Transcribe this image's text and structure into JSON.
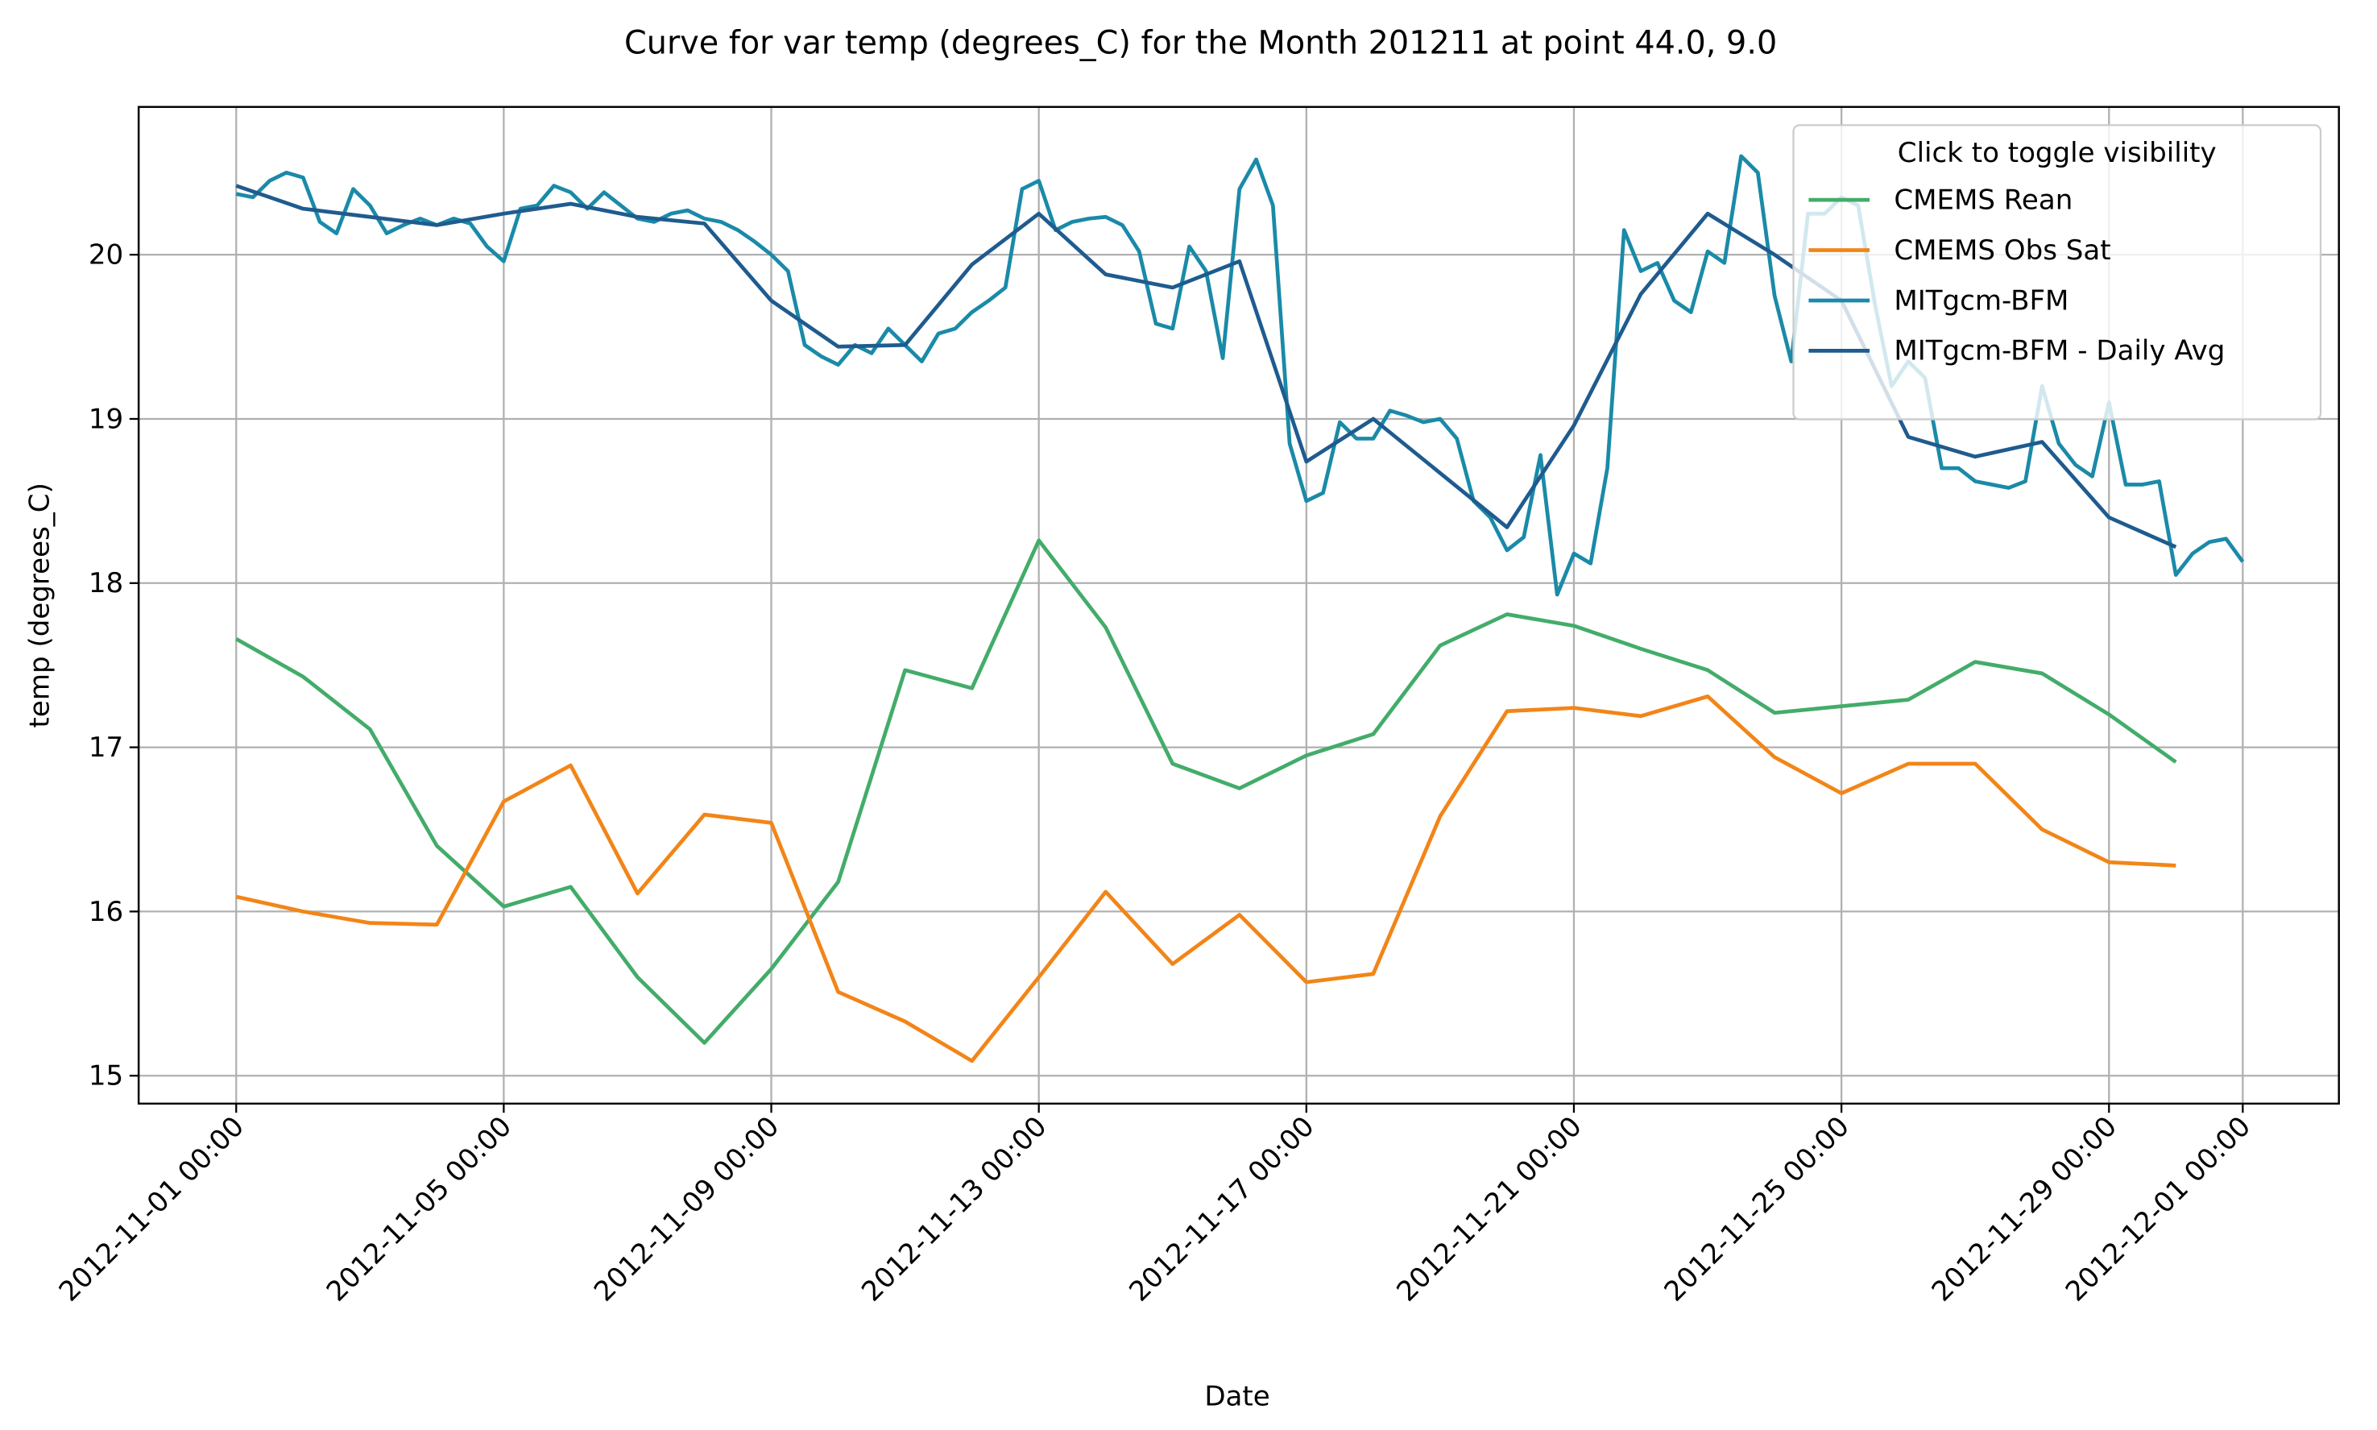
{
  "chart_data": {
    "type": "line",
    "title": "Curve for var temp (degrees_C) for the Month 201211 at point 44.0, 9.0",
    "x_label": "Date",
    "y_label": "temp (degrees_C)",
    "grid": true,
    "legend_title": "Click to toggle visibility",
    "legend_position": "upper right",
    "xlim": [
      "2012-10-30 13:00",
      "2012-12-02 10:30"
    ],
    "ylim": [
      14.83,
      20.9
    ],
    "xticks": [
      "2012-11-01 00:00",
      "2012-11-05 00:00",
      "2012-11-09 00:00",
      "2012-11-13 00:00",
      "2012-11-17 00:00",
      "2012-11-21 00:00",
      "2012-11-25 00:00",
      "2012-11-29 00:00",
      "2012-12-01 00:00"
    ],
    "yticks": [
      15,
      16,
      17,
      18,
      19,
      20
    ],
    "x": [
      "2012-11-01 00:00",
      "2012-11-02 00:00",
      "2012-11-03 00:00",
      "2012-11-04 00:00",
      "2012-11-05 00:00",
      "2012-11-06 00:00",
      "2012-11-07 00:00",
      "2012-11-08 00:00",
      "2012-11-09 00:00",
      "2012-11-10 00:00",
      "2012-11-11 00:00",
      "2012-11-12 00:00",
      "2012-11-13 00:00",
      "2012-11-14 00:00",
      "2012-11-15 00:00",
      "2012-11-16 00:00",
      "2012-11-17 00:00",
      "2012-11-18 00:00",
      "2012-11-19 00:00",
      "2012-11-20 00:00",
      "2012-11-21 00:00",
      "2012-11-22 00:00",
      "2012-11-23 00:00",
      "2012-11-24 00:00",
      "2012-11-25 00:00",
      "2012-11-26 00:00",
      "2012-11-27 00:00",
      "2012-11-28 00:00",
      "2012-11-29 00:00",
      "2012-11-30 00:00"
    ],
    "series": [
      {
        "name": "CMEMS Rean",
        "color": "#43ac6a",
        "values": [
          17.66,
          17.43,
          17.11,
          16.4,
          16.03,
          16.15,
          15.6,
          15.2,
          15.65,
          16.18,
          17.47,
          17.36,
          18.26,
          17.73,
          16.9,
          16.75,
          16.95,
          17.08,
          17.62,
          17.81,
          17.74,
          17.6,
          17.47,
          17.21,
          17.25,
          17.29,
          17.52,
          17.45,
          17.2,
          16.91
        ]
      },
      {
        "name": "CMEMS Obs Sat",
        "color": "#f28518",
        "values": [
          16.09,
          16.0,
          15.93,
          15.92,
          16.67,
          16.89,
          16.11,
          16.59,
          16.54,
          15.51,
          15.33,
          15.09,
          15.6,
          16.12,
          15.68,
          15.98,
          15.57,
          15.62,
          16.58,
          17.22,
          17.24,
          17.19,
          17.31,
          16.94,
          16.72,
          16.9,
          16.9,
          16.5,
          16.3,
          16.28
        ]
      },
      {
        "name": "MITgcm-BFM",
        "color": "#1a8aa8",
        "x": [
          "2012-11-01 00:00",
          "2012-11-01 06:00",
          "2012-11-01 12:00",
          "2012-11-01 18:00",
          "2012-11-02 00:00",
          "2012-11-02 06:00",
          "2012-11-02 12:00",
          "2012-11-02 18:00",
          "2012-11-03 00:00",
          "2012-11-03 06:00",
          "2012-11-03 12:00",
          "2012-11-03 18:00",
          "2012-11-04 00:00",
          "2012-11-04 06:00",
          "2012-11-04 12:00",
          "2012-11-04 18:00",
          "2012-11-05 00:00",
          "2012-11-05 06:00",
          "2012-11-05 12:00",
          "2012-11-05 18:00",
          "2012-11-06 00:00",
          "2012-11-06 06:00",
          "2012-11-06 12:00",
          "2012-11-06 18:00",
          "2012-11-07 00:00",
          "2012-11-07 06:00",
          "2012-11-07 12:00",
          "2012-11-07 18:00",
          "2012-11-08 00:00",
          "2012-11-08 06:00",
          "2012-11-08 12:00",
          "2012-11-08 18:00",
          "2012-11-09 00:00",
          "2012-11-09 06:00",
          "2012-11-09 12:00",
          "2012-11-09 18:00",
          "2012-11-10 00:00",
          "2012-11-10 06:00",
          "2012-11-10 12:00",
          "2012-11-10 18:00",
          "2012-11-11 00:00",
          "2012-11-11 06:00",
          "2012-11-11 12:00",
          "2012-11-11 18:00",
          "2012-11-12 00:00",
          "2012-11-12 06:00",
          "2012-11-12 12:00",
          "2012-11-12 18:00",
          "2012-11-13 00:00",
          "2012-11-13 06:00",
          "2012-11-13 12:00",
          "2012-11-13 18:00",
          "2012-11-14 00:00",
          "2012-11-14 06:00",
          "2012-11-14 12:00",
          "2012-11-14 18:00",
          "2012-11-15 00:00",
          "2012-11-15 06:00",
          "2012-11-15 12:00",
          "2012-11-15 18:00",
          "2012-11-16 00:00",
          "2012-11-16 06:00",
          "2012-11-16 12:00",
          "2012-11-16 18:00",
          "2012-11-17 00:00",
          "2012-11-17 06:00",
          "2012-11-17 12:00",
          "2012-11-17 18:00",
          "2012-11-18 00:00",
          "2012-11-18 06:00",
          "2012-11-18 12:00",
          "2012-11-18 18:00",
          "2012-11-19 00:00",
          "2012-11-19 06:00",
          "2012-11-19 12:00",
          "2012-11-19 18:00",
          "2012-11-20 00:00",
          "2012-11-20 06:00",
          "2012-11-20 12:00",
          "2012-11-20 18:00",
          "2012-11-21 00:00",
          "2012-11-21 06:00",
          "2012-11-21 12:00",
          "2012-11-21 18:00",
          "2012-11-22 00:00",
          "2012-11-22 06:00",
          "2012-11-22 12:00",
          "2012-11-22 18:00",
          "2012-11-23 00:00",
          "2012-11-23 06:00",
          "2012-11-23 12:00",
          "2012-11-23 18:00",
          "2012-11-24 00:00",
          "2012-11-24 06:00",
          "2012-11-24 12:00",
          "2012-11-24 18:00",
          "2012-11-25 00:00",
          "2012-11-25 06:00",
          "2012-11-25 12:00",
          "2012-11-25 18:00",
          "2012-11-26 00:00",
          "2012-11-26 06:00",
          "2012-11-26 12:00",
          "2012-11-26 18:00",
          "2012-11-27 00:00",
          "2012-11-27 06:00",
          "2012-11-27 12:00",
          "2012-11-27 18:00",
          "2012-11-28 00:00",
          "2012-11-28 06:00",
          "2012-11-28 12:00",
          "2012-11-28 18:00",
          "2012-11-29 00:00",
          "2012-11-29 06:00",
          "2012-11-29 12:00",
          "2012-11-29 18:00",
          "2012-11-30 00:00",
          "2012-11-30 06:00",
          "2012-11-30 12:00",
          "2012-11-30 18:00",
          "2012-12-01 00:00"
        ],
        "values": [
          20.37,
          20.35,
          20.45,
          20.5,
          20.47,
          20.2,
          20.13,
          20.4,
          20.3,
          20.13,
          20.18,
          20.22,
          20.18,
          20.22,
          20.19,
          20.05,
          19.96,
          20.28,
          20.3,
          20.42,
          20.38,
          20.28,
          20.38,
          20.3,
          20.22,
          20.2,
          20.25,
          20.27,
          20.22,
          20.2,
          20.15,
          20.08,
          20.0,
          19.9,
          19.45,
          19.38,
          19.33,
          19.45,
          19.4,
          19.55,
          19.45,
          19.35,
          19.52,
          19.55,
          19.65,
          19.72,
          19.8,
          20.4,
          20.45,
          20.15,
          20.2,
          20.22,
          20.23,
          20.18,
          20.02,
          19.58,
          19.55,
          20.05,
          19.9,
          19.37,
          20.4,
          20.58,
          20.3,
          18.85,
          18.5,
          18.55,
          18.98,
          18.88,
          18.88,
          19.05,
          19.02,
          18.98,
          19.0,
          18.88,
          18.5,
          18.4,
          18.2,
          18.28,
          18.78,
          17.93,
          18.18,
          18.12,
          18.7,
          20.15,
          19.9,
          19.95,
          19.72,
          19.65,
          20.02,
          19.95,
          20.6,
          20.5,
          19.75,
          19.35,
          20.25,
          20.25,
          20.35,
          20.3,
          19.7,
          19.2,
          19.35,
          19.25,
          18.7,
          18.7,
          18.62,
          18.6,
          18.58,
          18.62,
          19.2,
          18.85,
          18.72,
          18.65,
          19.1,
          18.6,
          18.6,
          18.62,
          18.05,
          18.18,
          18.25,
          18.27,
          18.13
        ]
      },
      {
        "name": "MITgcm-BFM - Daily Avg",
        "color": "#1f5b8e",
        "values": [
          20.42,
          20.28,
          20.23,
          20.18,
          20.25,
          20.31,
          20.23,
          20.19,
          19.72,
          19.44,
          19.45,
          19.94,
          20.25,
          19.88,
          19.8,
          19.96,
          18.74,
          19.0,
          18.67,
          18.34,
          18.96,
          19.76,
          20.25,
          20.0,
          19.72,
          18.89,
          18.77,
          18.86,
          18.4,
          18.22
        ]
      }
    ]
  }
}
